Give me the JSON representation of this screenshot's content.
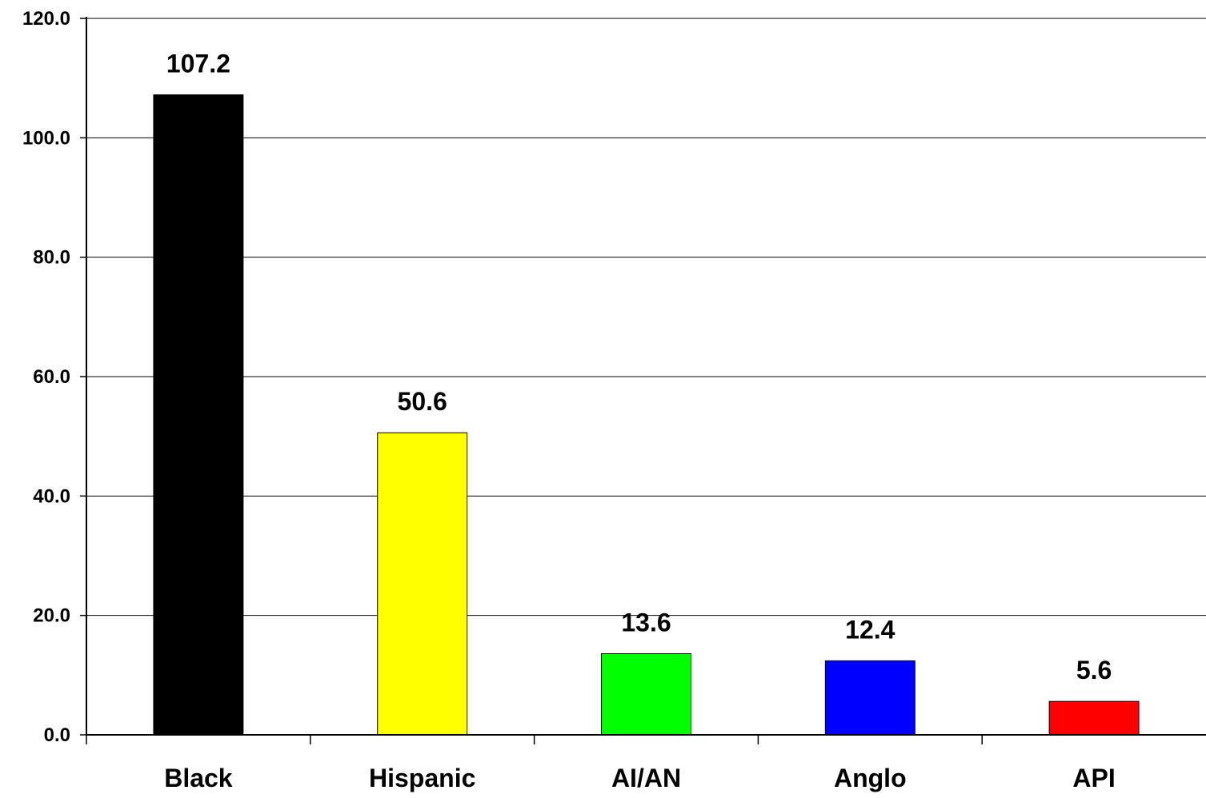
{
  "chart_data": {
    "type": "bar",
    "categories": [
      "Black",
      "Hispanic",
      "AI/AN",
      "Anglo",
      "API"
    ],
    "values": [
      107.2,
      50.6,
      13.6,
      12.4,
      5.6
    ],
    "data_labels": [
      "107.2",
      "50.6",
      "13.6",
      "12.4",
      "5.6"
    ],
    "colors": [
      "#000000",
      "#ffff00",
      "#00ff00",
      "#0000ff",
      "#ff0000"
    ],
    "ylim": [
      0,
      120
    ],
    "yticks": [
      0,
      20,
      40,
      60,
      80,
      100,
      120
    ],
    "ytick_labels": [
      "0.0",
      "20.0",
      "40.0",
      "60.0",
      "80.0",
      "100.0",
      "120.0"
    ],
    "grid": true,
    "title": "",
    "xlabel": "",
    "ylabel": ""
  }
}
